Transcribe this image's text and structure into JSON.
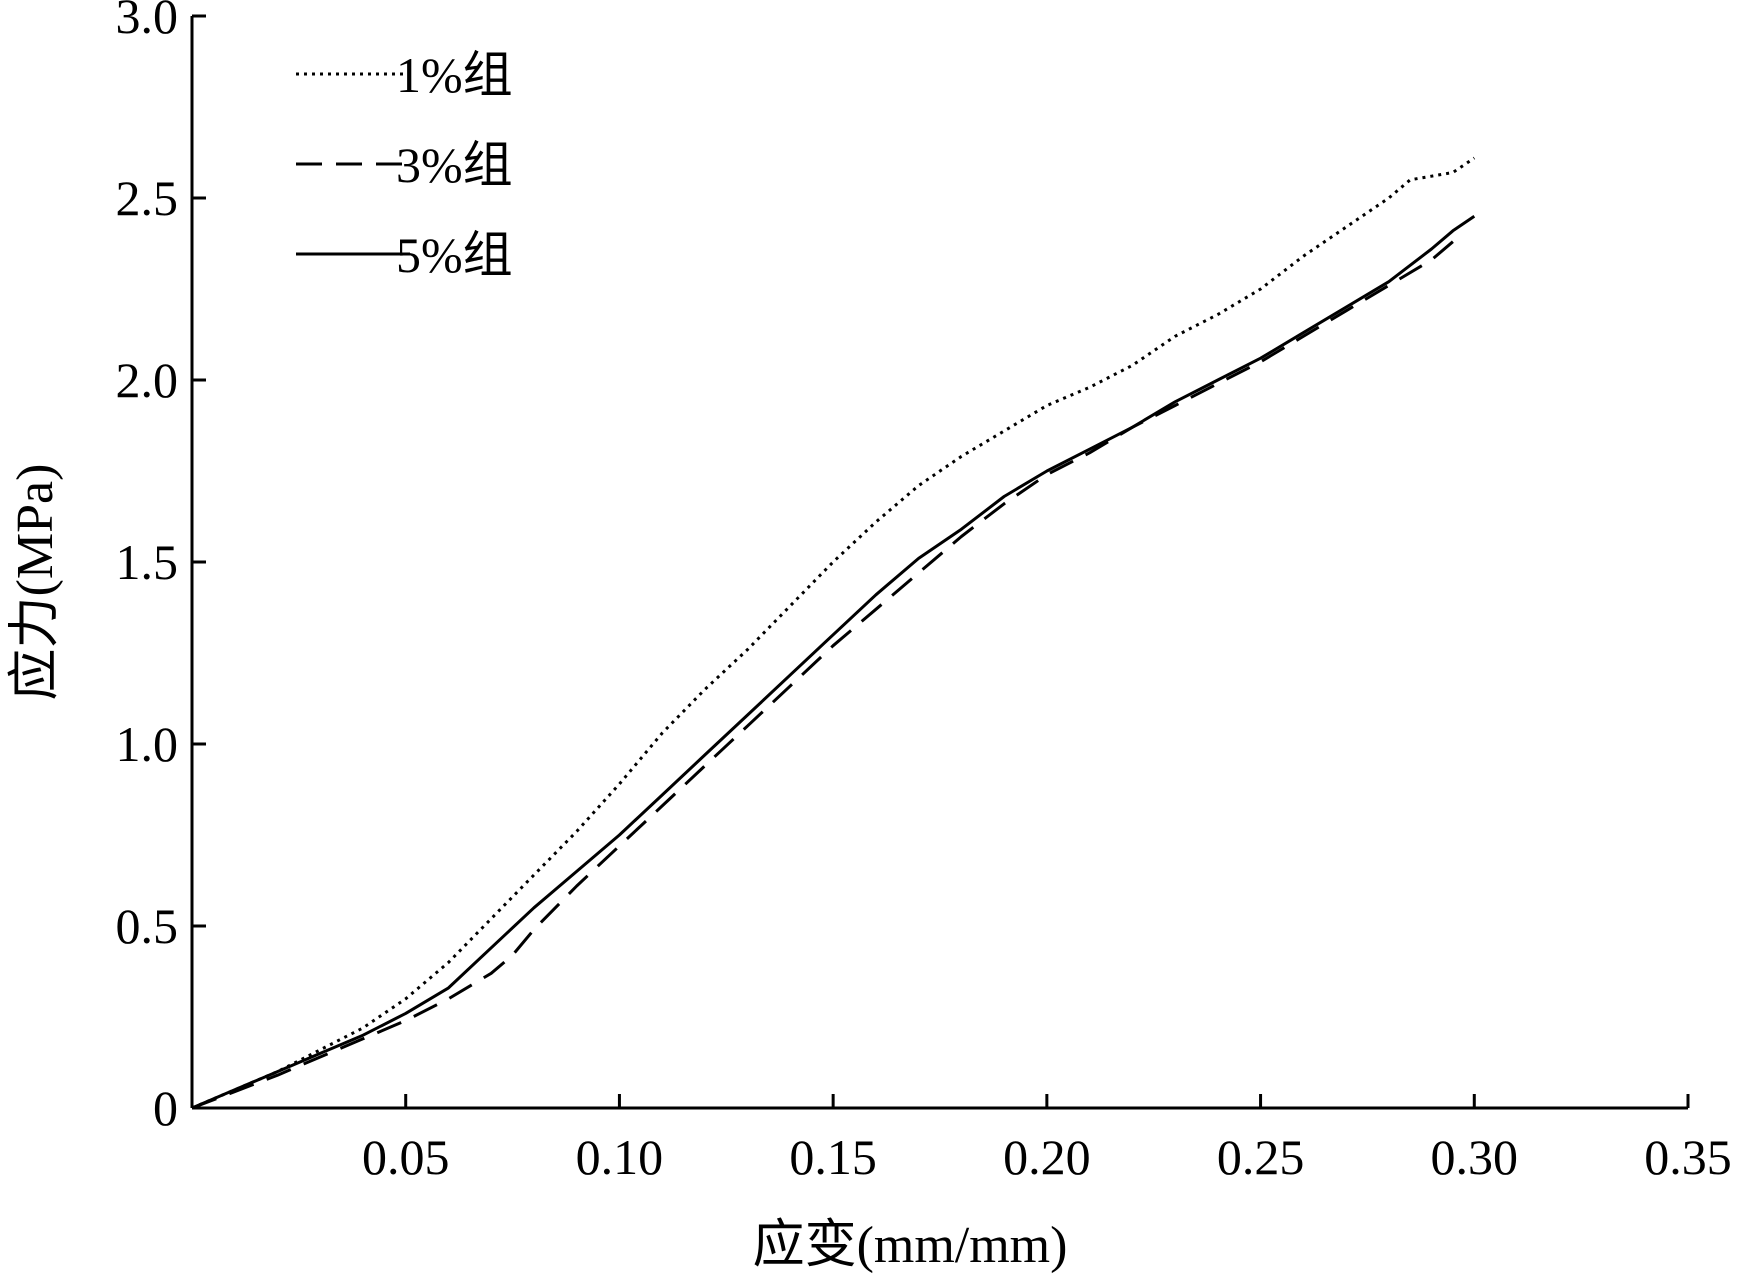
{
  "chart_data": {
    "type": "line",
    "title": "",
    "xlabel": "应变(mm/mm)",
    "ylabel": "应力(MPa)",
    "xlim": [
      0,
      0.35
    ],
    "ylim": [
      0,
      3.0
    ],
    "xticks": [
      0.05,
      0.1,
      0.15,
      0.2,
      0.25,
      0.3,
      0.35
    ],
    "xtick_labels": [
      "0.05",
      "0.10",
      "0.15",
      "0.20",
      "0.25",
      "0.30",
      "0.35"
    ],
    "yticks": [
      0,
      0.5,
      1.0,
      1.5,
      2.0,
      2.5,
      3.0
    ],
    "ytick_labels": [
      "0",
      "0.5",
      "1.0",
      "1.5",
      "2.0",
      "2.5",
      "3.0"
    ],
    "grid": false,
    "legend_position": "top-left",
    "series": [
      {
        "name": "1%组",
        "style": "dotted",
        "x": [
          0,
          0.02,
          0.03,
          0.04,
          0.05,
          0.06,
          0.07,
          0.08,
          0.09,
          0.1,
          0.11,
          0.12,
          0.13,
          0.14,
          0.15,
          0.16,
          0.17,
          0.18,
          0.19,
          0.2,
          0.21,
          0.22,
          0.23,
          0.24,
          0.25,
          0.26,
          0.27,
          0.28,
          0.285,
          0.29,
          0.295,
          0.3
        ],
        "y": [
          0,
          0.1,
          0.16,
          0.22,
          0.3,
          0.4,
          0.52,
          0.64,
          0.76,
          0.89,
          1.03,
          1.15,
          1.26,
          1.38,
          1.5,
          1.61,
          1.71,
          1.79,
          1.86,
          1.93,
          1.98,
          2.04,
          2.12,
          2.18,
          2.25,
          2.34,
          2.42,
          2.5,
          2.55,
          2.56,
          2.57,
          2.61
        ]
      },
      {
        "name": "3%组",
        "style": "dashed",
        "x": [
          0,
          0.02,
          0.03,
          0.04,
          0.05,
          0.06,
          0.07,
          0.075,
          0.08,
          0.09,
          0.1,
          0.11,
          0.12,
          0.13,
          0.14,
          0.15,
          0.16,
          0.17,
          0.18,
          0.19,
          0.2,
          0.21,
          0.22,
          0.23,
          0.24,
          0.25,
          0.26,
          0.27,
          0.28,
          0.29,
          0.295
        ],
        "y": [
          0,
          0.09,
          0.14,
          0.19,
          0.24,
          0.3,
          0.37,
          0.42,
          0.49,
          0.61,
          0.72,
          0.83,
          0.94,
          1.05,
          1.16,
          1.27,
          1.37,
          1.47,
          1.57,
          1.66,
          1.74,
          1.8,
          1.87,
          1.93,
          1.99,
          2.05,
          2.12,
          2.19,
          2.26,
          2.33,
          2.38
        ]
      },
      {
        "name": "5%组",
        "style": "solid",
        "x": [
          0,
          0.02,
          0.03,
          0.04,
          0.05,
          0.06,
          0.07,
          0.08,
          0.09,
          0.1,
          0.11,
          0.12,
          0.13,
          0.14,
          0.15,
          0.16,
          0.17,
          0.18,
          0.19,
          0.2,
          0.21,
          0.22,
          0.23,
          0.24,
          0.25,
          0.26,
          0.27,
          0.28,
          0.29,
          0.295,
          0.3
        ],
        "y": [
          0,
          0.1,
          0.15,
          0.2,
          0.26,
          0.33,
          0.44,
          0.55,
          0.65,
          0.75,
          0.86,
          0.97,
          1.08,
          1.19,
          1.3,
          1.41,
          1.51,
          1.59,
          1.68,
          1.75,
          1.81,
          1.87,
          1.94,
          2.0,
          2.06,
          2.13,
          2.2,
          2.27,
          2.36,
          2.41,
          2.45
        ]
      }
    ]
  }
}
